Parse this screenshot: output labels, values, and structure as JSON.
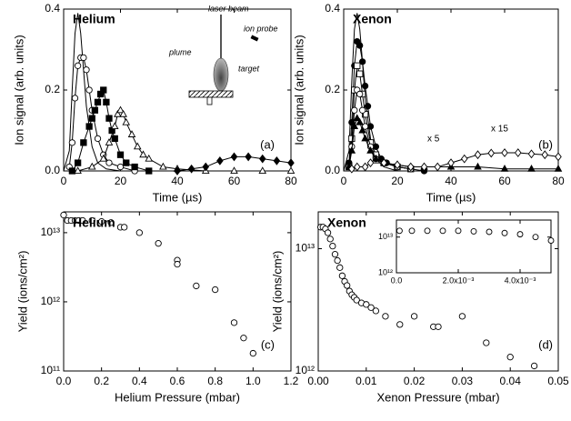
{
  "chart_data": [
    {
      "type": "line",
      "xlabel": "Time (µs)",
      "ylabel": "Ion signal (arb. units)",
      "annotations": [
        "Helium",
        "(a)",
        "laser beam",
        "ion probe",
        "plume",
        "target"
      ],
      "xlim": [
        0,
        80
      ],
      "xticks": [
        0,
        20,
        40,
        60,
        80
      ],
      "ylim": [
        0,
        0.4
      ],
      "yticks": [
        {
          "value": 0,
          "label": "0.0"
        },
        0.2,
        0.4
      ],
      "series": [
        {
          "color": "#000000",
          "marker": "none",
          "x": [
            0,
            2,
            3,
            4,
            5,
            6,
            7,
            8,
            10,
            12,
            15,
            20
          ],
          "values": [
            0,
            0.05,
            0.2,
            0.34,
            0.39,
            0.34,
            0.25,
            0.16,
            0.06,
            0.02,
            0.005,
            0
          ]
        },
        {
          "color": "#000000",
          "marker": "open-circle",
          "x": [
            2,
            3,
            4,
            5,
            6,
            7,
            8,
            9,
            10,
            12,
            14,
            16,
            20,
            25
          ],
          "values": [
            0.01,
            0.07,
            0.18,
            0.26,
            0.28,
            0.28,
            0.25,
            0.2,
            0.15,
            0.08,
            0.04,
            0.02,
            0.01,
            0
          ]
        },
        {
          "color": "#000000",
          "marker": "filled-square",
          "x": [
            3,
            5,
            7,
            9,
            10,
            11,
            12,
            13,
            14,
            15,
            16,
            17,
            18,
            20,
            22,
            25,
            30
          ],
          "values": [
            0,
            0.02,
            0.07,
            0.11,
            0.13,
            0.15,
            0.17,
            0.19,
            0.2,
            0.17,
            0.13,
            0.1,
            0.08,
            0.04,
            0.02,
            0.01,
            0
          ]
        },
        {
          "color": "#000000",
          "marker": "open-triangle",
          "x": [
            5,
            10,
            14,
            16,
            18,
            19,
            20,
            21,
            22,
            24,
            26,
            28,
            30,
            35,
            40,
            50,
            60,
            70,
            80
          ],
          "values": [
            0,
            0.01,
            0.03,
            0.07,
            0.11,
            0.14,
            0.15,
            0.14,
            0.12,
            0.09,
            0.06,
            0.04,
            0.03,
            0.01,
            0.005,
            0,
            0,
            0,
            0
          ]
        },
        {
          "color": "#000000",
          "marker": "filled-diamond",
          "x": [
            40,
            45,
            50,
            55,
            60,
            65,
            70,
            75,
            80
          ],
          "values": [
            0,
            0.005,
            0.01,
            0.025,
            0.035,
            0.035,
            0.03,
            0.025,
            0.02
          ]
        }
      ]
    },
    {
      "type": "line",
      "xlabel": "Time (µs)",
      "ylabel": "Ion signal (arb. units)",
      "annotations": [
        "Xenon",
        "(b)",
        "x 5",
        "x 15"
      ],
      "xlim": [
        0,
        80
      ],
      "xticks": [
        0,
        20,
        40,
        60,
        80
      ],
      "ylim": [
        0,
        0.4
      ],
      "yticks": [
        {
          "value": 0,
          "label": "0.0"
        },
        0.2,
        0.4
      ],
      "series": [
        {
          "color": "#000000",
          "marker": "none",
          "x": [
            0,
            2,
            3,
            4,
            5,
            6,
            7,
            8,
            10,
            12,
            15,
            20,
            30
          ],
          "values": [
            0,
            0.05,
            0.22,
            0.35,
            0.39,
            0.35,
            0.27,
            0.18,
            0.08,
            0.03,
            0.01,
            0,
            0
          ]
        },
        {
          "color": "#000000",
          "marker": "filled-circle",
          "x": [
            2,
            3,
            4,
            5,
            6,
            7,
            8,
            9,
            10,
            12,
            14,
            16,
            20,
            25,
            30
          ],
          "values": [
            0.02,
            0.12,
            0.26,
            0.32,
            0.31,
            0.27,
            0.21,
            0.16,
            0.11,
            0.06,
            0.03,
            0.02,
            0.01,
            0.005,
            0
          ]
        },
        {
          "color": "#000000",
          "marker": "open-square",
          "x": [
            2,
            3,
            4,
            5,
            6,
            7,
            8,
            10,
            12,
            15,
            20,
            25
          ],
          "values": [
            0.01,
            0.08,
            0.2,
            0.26,
            0.24,
            0.19,
            0.14,
            0.07,
            0.04,
            0.02,
            0.01,
            0.005
          ]
        },
        {
          "color": "#000000",
          "marker": "open-circle",
          "x": [
            2,
            3,
            4,
            5,
            6,
            7,
            8,
            10,
            12,
            15,
            20,
            25
          ],
          "values": [
            0.01,
            0.06,
            0.15,
            0.2,
            0.19,
            0.15,
            0.11,
            0.06,
            0.03,
            0.02,
            0.01,
            0.005
          ]
        },
        {
          "color": "#000000",
          "marker": "filled-triangle",
          "x": [
            2,
            3,
            4,
            5,
            6,
            7,
            8,
            10,
            12,
            15,
            20,
            25,
            30,
            40,
            50,
            60,
            70,
            80
          ],
          "values": [
            0.01,
            0.05,
            0.11,
            0.13,
            0.12,
            0.1,
            0.08,
            0.05,
            0.03,
            0.02,
            0.015,
            0.01,
            0.01,
            0.01,
            0.01,
            0.005,
            0.005,
            0.005
          ]
        },
        {
          "color": "#000000",
          "marker": "open-diamond",
          "x": [
            3,
            5,
            8,
            10,
            15,
            20,
            25,
            30,
            35,
            40,
            45,
            50,
            55,
            60,
            65,
            70,
            75,
            80
          ],
          "values": [
            0.005,
            0.01,
            0.01,
            0.02,
            0.02,
            0.015,
            0.01,
            0.01,
            0.01,
            0.02,
            0.03,
            0.04,
            0.044,
            0.045,
            0.045,
            0.042,
            0.04,
            0.035
          ]
        }
      ]
    },
    {
      "type": "scatter",
      "xlabel": "Helium Pressure (mbar)",
      "ylabel": "Yield (ions/cm²)",
      "log_y": true,
      "annotations": [
        "Helium",
        "(c)"
      ],
      "xlim": [
        0,
        1.2
      ],
      "xticks": [
        {
          "value": 0,
          "label": "0.0"
        },
        0.2,
        0.4,
        0.6,
        0.8,
        {
          "value": 1,
          "label": "1.0"
        },
        1.2
      ],
      "ylim": [
        100000000000.0,
        20000000000000.0
      ],
      "yticks": [
        {
          "value": 100000000000.0,
          "label": "10¹¹"
        },
        {
          "value": 1000000000000.0,
          "label": "10¹²"
        },
        {
          "value": 10000000000000.0,
          "label": "10¹³"
        }
      ],
      "series": [
        {
          "color": "#000000",
          "marker": "open-circle",
          "x": [
            0,
            0.02,
            0.04,
            0.06,
            0.08,
            0.1,
            0.15,
            0.2,
            0.25,
            0.3,
            0.32,
            0.4,
            0.5,
            0.6,
            0.6,
            0.7,
            0.8,
            0.9,
            0.95,
            1.0
          ],
          "values": [
            18000000000000.0,
            15000000000000.0,
            15000000000000.0,
            15000000000000.0,
            15000000000000.0,
            15000000000000.0,
            15000000000000.0,
            14500000000000.0,
            14000000000000.0,
            12000000000000.0,
            12000000000000.0,
            10000000000000.0,
            7000000000000.0,
            4000000000000.0,
            3500000000000.0,
            1700000000000.0,
            1500000000000.0,
            500000000000.0,
            300000000000.0,
            180000000000.0
          ]
        }
      ]
    },
    {
      "type": "scatter",
      "xlabel": "Xenon Pressure (mbar)",
      "ylabel": "Yield (ions/cm²)",
      "log_y": true,
      "annotations": [
        "Xenon",
        "(d)"
      ],
      "xlim": [
        0,
        0.05
      ],
      "xticks": [
        {
          "value": 0,
          "label": "0.00"
        },
        0.01,
        0.02,
        0.03,
        0.04,
        0.05
      ],
      "ylim": [
        1000000000000.0,
        20000000000000.0
      ],
      "yticks": [
        {
          "value": 1000000000000.0,
          "label": "10¹²"
        },
        {
          "value": 10000000000000.0,
          "label": "10¹³"
        }
      ],
      "series": [
        {
          "color": "#000000",
          "marker": "open-circle",
          "x": [
            0.0005,
            0.001,
            0.0015,
            0.002,
            0.0025,
            0.003,
            0.0035,
            0.004,
            0.0045,
            0.005,
            0.0055,
            0.006,
            0.0065,
            0.007,
            0.0075,
            0.008,
            0.009,
            0.01,
            0.011,
            0.012,
            0.014,
            0.017,
            0.02,
            0.024,
            0.025,
            0.03,
            0.035,
            0.04,
            0.045
          ],
          "values": [
            15000000000000.0,
            15000000000000.0,
            14500000000000.0,
            13500000000000.0,
            12000000000000.0,
            10500000000000.0,
            9000000000000.0,
            8000000000000.0,
            7000000000000.0,
            6000000000000.0,
            5400000000000.0,
            5000000000000.0,
            4500000000000.0,
            4200000000000.0,
            4000000000000.0,
            3800000000000.0,
            3600000000000.0,
            3500000000000.0,
            3300000000000.0,
            3100000000000.0,
            2800000000000.0,
            2400000000000.0,
            2800000000000.0,
            2300000000000.0,
            2300000000000.0,
            2800000000000.0,
            1700000000000.0,
            1300000000000.0,
            1100000000000.0
          ]
        }
      ]
    },
    {
      "type": "scatter",
      "log_y": true,
      "xlim": [
        0,
        0.005
      ],
      "xticks": [
        {
          "value": 0,
          "label": "0.0"
        },
        {
          "value": 0.002,
          "label": "2.0x10⁻³"
        },
        {
          "value": 0.004,
          "label": "4.0x10⁻³"
        }
      ],
      "ylim": [
        1000000000000.0,
        30000000000000.0
      ],
      "yticks": [
        {
          "value": 1000000000000.0,
          "label": "10¹²"
        },
        {
          "value": 10000000000000.0,
          "label": "10¹³"
        }
      ],
      "series": [
        {
          "color": "#000000",
          "marker": "open-circle",
          "x": [
            0.0001,
            0.0005,
            0.001,
            0.0015,
            0.002,
            0.0025,
            0.003,
            0.0035,
            0.004,
            0.0045,
            0.005
          ],
          "values": [
            15000000000000.0,
            15000000000000.0,
            15000000000000.0,
            15000000000000.0,
            15000000000000.0,
            14500000000000.0,
            14000000000000.0,
            13000000000000.0,
            12000000000000.0,
            10000000000000.0,
            8000000000000.0
          ]
        }
      ]
    }
  ]
}
